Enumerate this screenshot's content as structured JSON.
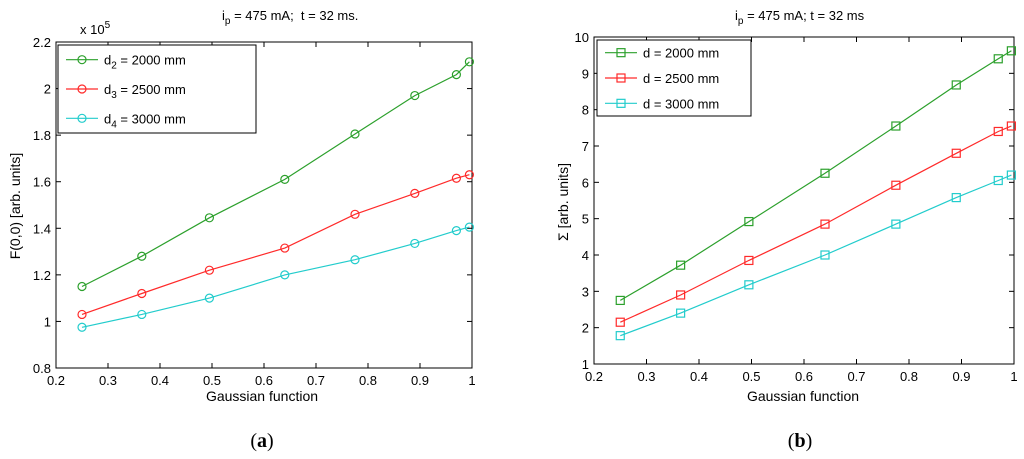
{
  "panel_labels": [
    "(",
    "a",
    ")",
    "(",
    "b",
    ")"
  ],
  "chart_data": [
    {
      "type": "line",
      "title_parts": [
        "i",
        "p",
        " = 475 mA;  t = 32 ms."
      ],
      "xlabel": "Gaussian function",
      "ylabel": "F(0,0) [arb. units]",
      "exponent_label": [
        "x 10",
        "5"
      ],
      "xlim": [
        0.2,
        1.0
      ],
      "ylim": [
        0.8,
        2.2
      ],
      "xticks": [
        "0.2",
        "0.3",
        "0.4",
        "0.5",
        "0.6",
        "0.7",
        "0.8",
        "0.9",
        "1"
      ],
      "yticks": [
        "0.8",
        "1",
        "1.2",
        "1.4",
        "1.6",
        "1.8",
        "2",
        "2.2"
      ],
      "marker": "circle",
      "x": [
        0.25,
        0.365,
        0.495,
        0.64,
        0.775,
        0.89,
        0.97,
        0.995
      ],
      "series": [
        {
          "name_parts": [
            "d",
            "2",
            " = 2000 mm"
          ],
          "color": "#2ca02c",
          "values": [
            1.15,
            1.28,
            1.445,
            1.61,
            1.805,
            1.97,
            2.06,
            2.115
          ]
        },
        {
          "name_parts": [
            "d",
            "3",
            " = 2500 mm"
          ],
          "color": "#ff2a2a",
          "values": [
            1.03,
            1.12,
            1.22,
            1.315,
            1.46,
            1.55,
            1.615,
            1.63
          ]
        },
        {
          "name_parts": [
            "d",
            "4",
            " = 3000 mm"
          ],
          "color": "#22cccc",
          "values": [
            0.975,
            1.03,
            1.1,
            1.2,
            1.265,
            1.335,
            1.39,
            1.405
          ]
        }
      ]
    },
    {
      "type": "line",
      "title_parts": [
        "i",
        "p",
        " = 475 mA; t = 32 ms"
      ],
      "xlabel": "Gaussian function",
      "ylabel": "Σ [arb. units]",
      "xlim": [
        0.2,
        1.0
      ],
      "ylim": [
        1,
        10
      ],
      "xticks": [
        "0.2",
        "0.3",
        "0.4",
        "0.5",
        "0.6",
        "0.7",
        "0.8",
        "0.9",
        "1"
      ],
      "yticks": [
        "1",
        "2",
        "3",
        "4",
        "5",
        "6",
        "7",
        "8",
        "9",
        "10"
      ],
      "marker": "square",
      "x": [
        0.25,
        0.365,
        0.495,
        0.64,
        0.775,
        0.89,
        0.97,
        0.995
      ],
      "series": [
        {
          "name_parts": [
            "d = 2000 mm"
          ],
          "color": "#2ca02c",
          "values": [
            2.75,
            3.72,
            4.92,
            6.25,
            7.55,
            8.68,
            9.4,
            9.62
          ]
        },
        {
          "name_parts": [
            "d = 2500 mm"
          ],
          "color": "#ff2a2a",
          "values": [
            2.15,
            2.9,
            3.85,
            4.85,
            5.92,
            6.8,
            7.4,
            7.55
          ]
        },
        {
          "name_parts": [
            "d = 3000 mm"
          ],
          "color": "#22cccc",
          "values": [
            1.78,
            2.4,
            3.18,
            4.0,
            4.85,
            5.58,
            6.05,
            6.2
          ]
        }
      ]
    }
  ]
}
